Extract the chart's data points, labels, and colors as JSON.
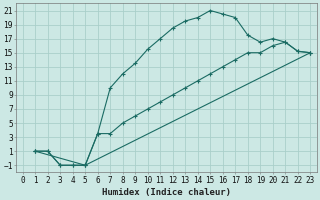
{
  "xlabel": "Humidex (Indice chaleur)",
  "bg_color": "#cce8e4",
  "grid_color": "#aacfca",
  "line_color": "#1a6b63",
  "xlim": [
    -0.5,
    23.5
  ],
  "ylim": [
    -2,
    22
  ],
  "xticks": [
    0,
    1,
    2,
    3,
    4,
    5,
    6,
    7,
    8,
    9,
    10,
    11,
    12,
    13,
    14,
    15,
    16,
    17,
    18,
    19,
    20,
    21,
    22,
    23
  ],
  "yticks": [
    -1,
    1,
    3,
    5,
    7,
    9,
    11,
    13,
    15,
    17,
    19,
    21
  ],
  "line1_x": [
    1,
    2,
    3,
    4,
    5,
    6,
    7,
    8,
    9,
    10,
    11,
    12,
    13,
    14,
    15,
    16,
    17,
    18,
    19,
    20,
    21,
    22,
    23
  ],
  "line1_y": [
    1,
    1,
    -1,
    -1,
    -1,
    3.5,
    10,
    12,
    13.5,
    15.5,
    17,
    18.5,
    19.5,
    20,
    21,
    20.5,
    20,
    17.5,
    16.5,
    17,
    16.5,
    15.2,
    15
  ],
  "line2_x": [
    1,
    2,
    3,
    4,
    5,
    6,
    7,
    8,
    9,
    10,
    11,
    12,
    13,
    14,
    15,
    16,
    17,
    18,
    19,
    20,
    21,
    22,
    23
  ],
  "line2_y": [
    1,
    1,
    -1,
    -1,
    -1,
    3.5,
    3.5,
    5,
    6,
    7,
    8,
    9,
    10,
    11,
    12,
    13,
    14,
    15,
    15,
    16,
    16.5,
    15.2,
    15
  ],
  "line3_x": [
    1,
    5,
    23
  ],
  "line3_y": [
    1,
    -1,
    15
  ],
  "xlabel_fontsize": 6.5,
  "tick_fontsize": 5.5
}
